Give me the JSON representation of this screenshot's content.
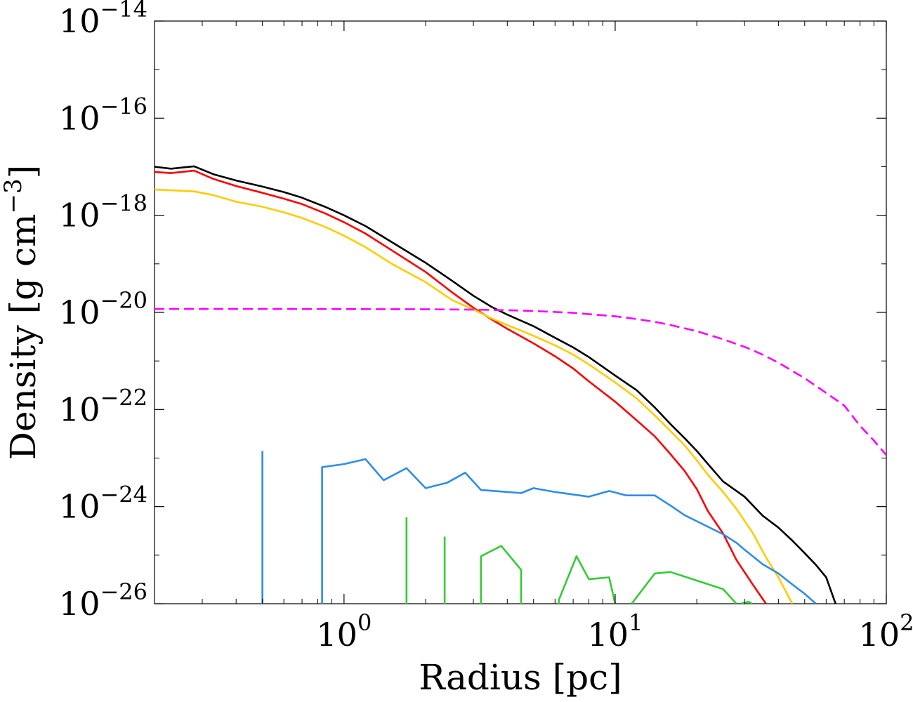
{
  "chart_data": {
    "type": "line",
    "title": "",
    "xlabel": "Radius [pc]",
    "ylabel": "Density [g cm",
    "ylabel_exponent": "−3",
    "ylabel_suffix": "]",
    "x_scale": "log",
    "y_scale": "log",
    "xlim": [
      0.2,
      100
    ],
    "ylim": [
      1e-26,
      1e-14
    ],
    "grid": false,
    "legend": "none",
    "x_ticks": [
      {
        "value": 1,
        "base": "10",
        "exp": "0"
      },
      {
        "value": 10,
        "base": "10",
        "exp": "1"
      },
      {
        "value": 100,
        "base": "10",
        "exp": "2"
      }
    ],
    "y_ticks": [
      {
        "value": 1e-26,
        "base": "10",
        "exp": "−26"
      },
      {
        "value": 1e-24,
        "base": "10",
        "exp": "−24"
      },
      {
        "value": 1e-22,
        "base": "10",
        "exp": "−22"
      },
      {
        "value": 1e-20,
        "base": "10",
        "exp": "−20"
      },
      {
        "value": 1e-18,
        "base": "10",
        "exp": "−18"
      },
      {
        "value": 1e-16,
        "base": "10",
        "exp": "−16"
      },
      {
        "value": 1e-14,
        "base": "10",
        "exp": "−14"
      }
    ],
    "series": [
      {
        "color": "#000000",
        "style": "solid",
        "points": [
          [
            0.2,
            1e-17
          ],
          [
            0.23,
            9.1e-18
          ],
          [
            0.28,
            1.02e-17
          ],
          [
            0.33,
            7e-18
          ],
          [
            0.4,
            5.2e-18
          ],
          [
            0.5,
            3.9e-18
          ],
          [
            0.6,
            3e-18
          ],
          [
            0.7,
            2.3e-18
          ],
          [
            0.85,
            1.5e-18
          ],
          [
            1.0,
            1e-18
          ],
          [
            1.2,
            6e-19
          ],
          [
            1.5,
            2.8e-19
          ],
          [
            2.0,
            1.05e-19
          ],
          [
            2.5,
            4.5e-20
          ],
          [
            3.0,
            2.2e-20
          ],
          [
            3.5,
            1.3e-20
          ],
          [
            4.0,
            9e-21
          ],
          [
            5.0,
            5.2e-21
          ],
          [
            6.0,
            3e-21
          ],
          [
            7.0,
            1.9e-21
          ],
          [
            8.0,
            1.2e-21
          ],
          [
            10.0,
            5e-22
          ],
          [
            12.0,
            2.5e-22
          ],
          [
            14.0,
            1.1e-22
          ],
          [
            16.0,
            5e-23
          ],
          [
            18.0,
            2.6e-23
          ],
          [
            20.0,
            1.4e-23
          ],
          [
            22.0,
            7.5e-24
          ],
          [
            25.0,
            3.3e-24
          ],
          [
            30.0,
            1.6e-24
          ],
          [
            35.0,
            6.5e-25
          ],
          [
            40.0,
            3.7e-25
          ],
          [
            45.0,
            2e-25
          ],
          [
            50.0,
            1.1e-25
          ],
          [
            55.0,
            6.3e-26
          ],
          [
            60.0,
            3.5e-26
          ],
          [
            65.0,
            1e-26
          ]
        ]
      },
      {
        "color": "#ff0000",
        "style": "solid",
        "points": [
          [
            0.2,
            7.8e-18
          ],
          [
            0.23,
            7.4e-18
          ],
          [
            0.28,
            8.3e-18
          ],
          [
            0.33,
            5.6e-18
          ],
          [
            0.4,
            4e-18
          ],
          [
            0.5,
            2.9e-18
          ],
          [
            0.6,
            2.2e-18
          ],
          [
            0.7,
            1.7e-18
          ],
          [
            0.85,
            1.1e-18
          ],
          [
            1.0,
            7.2e-19
          ],
          [
            1.2,
            4.2e-19
          ],
          [
            1.5,
            1.9e-19
          ],
          [
            2.0,
            6.8e-20
          ],
          [
            2.5,
            2.6e-20
          ],
          [
            3.0,
            1.25e-20
          ],
          [
            3.5,
            7.2e-21
          ],
          [
            4.0,
            4.6e-21
          ],
          [
            5.0,
            2.3e-21
          ],
          [
            6.0,
            1.25e-21
          ],
          [
            7.0,
            7e-22
          ],
          [
            8.0,
            3.8e-22
          ],
          [
            10.0,
            1.45e-22
          ],
          [
            12.0,
            6e-23
          ],
          [
            14.0,
            2.8e-23
          ],
          [
            16.0,
            1.2e-23
          ],
          [
            18.0,
            5.5e-24
          ],
          [
            20.0,
            2.3e-24
          ],
          [
            22.0,
            8e-25
          ],
          [
            25.0,
            2.8e-25
          ],
          [
            28.0,
            8e-26
          ],
          [
            32.0,
            2.6e-26
          ],
          [
            36.0,
            1e-26
          ]
        ]
      },
      {
        "color": "#ffcc00",
        "style": "solid",
        "points": [
          [
            0.2,
            3.4e-18
          ],
          [
            0.28,
            3.1e-18
          ],
          [
            0.33,
            2.6e-18
          ],
          [
            0.4,
            1.9e-18
          ],
          [
            0.5,
            1.5e-18
          ],
          [
            0.6,
            1.15e-18
          ],
          [
            0.7,
            8.8e-19
          ],
          [
            0.85,
            5.8e-19
          ],
          [
            1.0,
            3.8e-19
          ],
          [
            1.2,
            2.2e-19
          ],
          [
            1.5,
            1e-19
          ],
          [
            2.0,
            4.2e-20
          ],
          [
            2.5,
            1.8e-20
          ],
          [
            3.0,
            1.15e-20
          ],
          [
            3.5,
            7.5e-21
          ],
          [
            4.0,
            5.5e-21
          ],
          [
            5.0,
            3.3e-21
          ],
          [
            6.0,
            2.1e-21
          ],
          [
            7.0,
            1.35e-21
          ],
          [
            8.0,
            8.5e-22
          ],
          [
            10.0,
            3.6e-22
          ],
          [
            12.0,
            1.7e-22
          ],
          [
            14.0,
            7.5e-23
          ],
          [
            16.0,
            3.6e-23
          ],
          [
            18.0,
            1.85e-23
          ],
          [
            20.0,
            9e-24
          ],
          [
            22.0,
            4.5e-24
          ],
          [
            25.0,
            2e-24
          ],
          [
            28.0,
            9e-25
          ],
          [
            32.0,
            3e-25
          ],
          [
            36.0,
            9e-26
          ],
          [
            40.0,
            3.5e-26
          ],
          [
            45.0,
            1e-26
          ]
        ]
      },
      {
        "color": "#2e8de8",
        "style": "solid",
        "points": [
          [
            0.5,
            1e-26
          ],
          [
            0.5,
            1.4e-23
          ],
          [
            null,
            null
          ],
          [
            0.83,
            1e-26
          ],
          [
            0.83,
            6.5e-24
          ],
          [
            1.0,
            7.5e-24
          ],
          [
            1.2,
            9.5e-24
          ],
          [
            1.4,
            3.5e-24
          ],
          [
            1.7,
            6.2e-24
          ],
          [
            2.0,
            2.4e-24
          ],
          [
            2.4,
            3.1e-24
          ],
          [
            2.8,
            5e-24
          ],
          [
            3.2,
            2.2e-24
          ],
          [
            4.0,
            2e-24
          ],
          [
            4.5,
            1.9e-24
          ],
          [
            5.0,
            2.4e-24
          ],
          [
            6.0,
            2e-24
          ],
          [
            8.0,
            1.6e-24
          ],
          [
            9.5,
            2.1e-24
          ],
          [
            11.0,
            1.7e-24
          ],
          [
            14.0,
            1.7e-24
          ],
          [
            16.0,
            1.05e-24
          ],
          [
            18.0,
            6.7e-25
          ],
          [
            20.0,
            5e-25
          ],
          [
            25.0,
            2.7e-25
          ],
          [
            28.0,
            1.8e-25
          ],
          [
            30.0,
            1.3e-25
          ],
          [
            35.0,
            6.5e-26
          ],
          [
            40.0,
            4.2e-26
          ],
          [
            45.0,
            2.5e-26
          ],
          [
            50.0,
            1.6e-26
          ],
          [
            55.0,
            1e-26
          ]
        ]
      },
      {
        "color": "#33cc33",
        "style": "solid",
        "points": [
          [
            1.7,
            1e-26
          ],
          [
            1.7,
            6e-25
          ],
          [
            null,
            null
          ],
          [
            2.35,
            1e-26
          ],
          [
            2.35,
            2.4e-25
          ],
          [
            null,
            null
          ],
          [
            3.2,
            1e-26
          ],
          [
            3.2,
            9.5e-26
          ],
          [
            3.8,
            1.55e-25
          ],
          [
            4.5,
            5e-26
          ],
          [
            4.5,
            1e-26
          ],
          [
            null,
            null
          ],
          [
            6.2,
            1e-26
          ],
          [
            6.2,
            1.2e-26
          ],
          [
            7.2,
            9.5e-26
          ],
          [
            8.0,
            3.2e-26
          ],
          [
            9.5,
            3.5e-26
          ],
          [
            10.0,
            1e-26
          ],
          [
            null,
            null
          ],
          [
            11.5,
            1e-26
          ],
          [
            14.0,
            4.2e-26
          ],
          [
            16.0,
            4.5e-26
          ],
          [
            20.0,
            3e-26
          ],
          [
            25.0,
            2e-26
          ],
          [
            28.0,
            1e-26
          ],
          [
            null,
            null
          ],
          [
            29.0,
            1e-26
          ],
          [
            31.0,
            1.1e-26
          ],
          [
            32.0,
            1e-26
          ]
        ]
      },
      {
        "color": "#ff00ff",
        "style": "dashed",
        "points": [
          [
            0.2,
            1.18e-20
          ],
          [
            0.5,
            1.18e-20
          ],
          [
            1.0,
            1.17e-20
          ],
          [
            2.0,
            1.16e-20
          ],
          [
            3.0,
            1.14e-20
          ],
          [
            4.0,
            1.11e-20
          ],
          [
            5.0,
            1.07e-20
          ],
          [
            7.0,
            9.8e-21
          ],
          [
            8.0,
            9.2e-21
          ],
          [
            10.0,
            8.3e-21
          ],
          [
            12.0,
            7.3e-21
          ],
          [
            14.0,
            6.4e-21
          ],
          [
            16.0,
            5.5e-21
          ],
          [
            20.0,
            4.1e-21
          ],
          [
            25.0,
            2.8e-21
          ],
          [
            30.0,
            1.95e-21
          ],
          [
            35.0,
            1.35e-21
          ],
          [
            40.0,
            9.2e-22
          ],
          [
            50.0,
            4.4e-22
          ],
          [
            60.0,
            2.2e-22
          ],
          [
            70.0,
            1.2e-22
          ],
          [
            80.0,
            4.6e-23
          ],
          [
            90.0,
            2.3e-23
          ],
          [
            100.0,
            1.15e-23
          ]
        ]
      }
    ]
  }
}
